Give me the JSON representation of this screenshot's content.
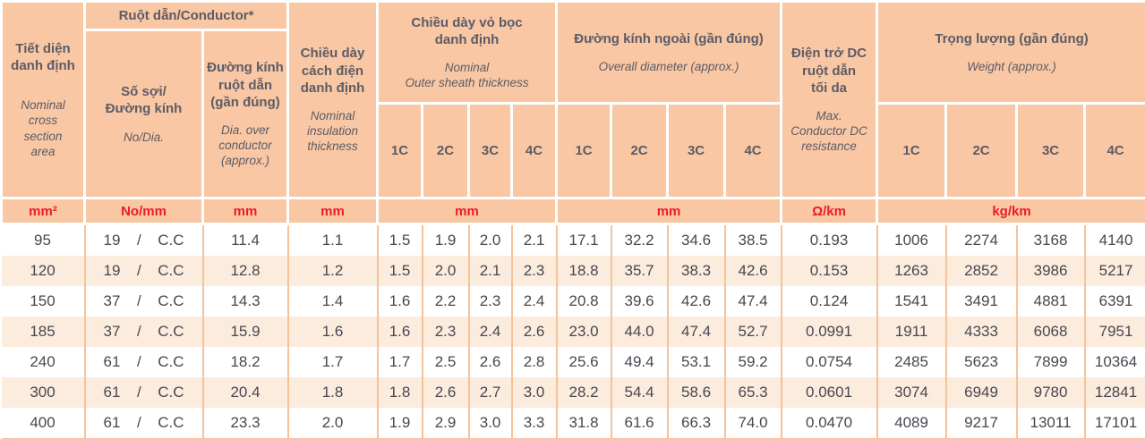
{
  "colors": {
    "header_bg": "#f9c7a4",
    "row_alt_bg": "#fcecdd",
    "grid_line": "#f4c39b",
    "unit_text": "#ec1c24",
    "header_text": "#5c5c66",
    "data_text": "#474750"
  },
  "table": {
    "cross_section": {
      "vi": "Tiết diện\ndanh định",
      "en": "Nominal\ncross\nsection\narea",
      "unit": "mm²"
    },
    "conductor_group": {
      "title": "Ruột dẫn/Conductor*",
      "no_dia": {
        "vi": "Số sợi/\nĐường kính",
        "en": "No/Dia.",
        "unit": "No/mm"
      },
      "dia_over": {
        "vi": "Đường kính\nruột dẫn\n(gần đúng)",
        "en": "Dia. over\nconductor\n(approx.)",
        "unit": "mm"
      }
    },
    "insulation": {
      "vi": "Chiều dày\ncách điện\ndanh định",
      "en": "Nominal\ninsulation\nthickness",
      "unit": "mm"
    },
    "sheath_group": {
      "vi": "Chiều dày vỏ bọc\ndanh định",
      "en": "Nominal\nOuter sheath thickness",
      "unit": "mm",
      "subcols": [
        "1C",
        "2C",
        "3C",
        "4C"
      ]
    },
    "diameter_group": {
      "vi": "Đường kính ngoài (gần đúng)",
      "en": "Overall diameter (approx.)",
      "unit": "mm",
      "subcols": [
        "1C",
        "2C",
        "3C",
        "4C"
      ]
    },
    "resistance": {
      "vi": "Điện trở DC\nruột dẫn\ntối da",
      "en": "Max.\nConductor DC\nresistance",
      "unit": "Ω/km"
    },
    "weight_group": {
      "vi": "Trọng lượng (gần đúng)",
      "en": "Weight (approx.)",
      "unit": "kg/km",
      "subcols": [
        "1C",
        "2C",
        "3C",
        "4C"
      ]
    },
    "rows": [
      {
        "size": "95",
        "strands": "19",
        "sep": "/",
        "material": "C.C",
        "dia": "11.4",
        "ins": "1.1",
        "sheath": [
          "1.5",
          "1.9",
          "2.0",
          "2.1"
        ],
        "od": [
          "17.1",
          "32.2",
          "34.6",
          "38.5"
        ],
        "res": "0.193",
        "weight": [
          "1006",
          "2274",
          "3168",
          "4140"
        ]
      },
      {
        "size": "120",
        "strands": "19",
        "sep": "/",
        "material": "C.C",
        "dia": "12.8",
        "ins": "1.2",
        "sheath": [
          "1.5",
          "2.0",
          "2.1",
          "2.3"
        ],
        "od": [
          "18.8",
          "35.7",
          "38.3",
          "42.6"
        ],
        "res": "0.153",
        "weight": [
          "1263",
          "2852",
          "3986",
          "5217"
        ]
      },
      {
        "size": "150",
        "strands": "37",
        "sep": "/",
        "material": "C.C",
        "dia": "14.3",
        "ins": "1.4",
        "sheath": [
          "1.6",
          "2.2",
          "2.3",
          "2.4"
        ],
        "od": [
          "20.8",
          "39.6",
          "42.6",
          "47.4"
        ],
        "res": "0.124",
        "weight": [
          "1541",
          "3491",
          "4881",
          "6391"
        ]
      },
      {
        "size": "185",
        "strands": "37",
        "sep": "/",
        "material": "C.C",
        "dia": "15.9",
        "ins": "1.6",
        "sheath": [
          "1.6",
          "2.3",
          "2.4",
          "2.6"
        ],
        "od": [
          "23.0",
          "44.0",
          "47.4",
          "52.7"
        ],
        "res": "0.0991",
        "weight": [
          "1911",
          "4333",
          "6068",
          "7951"
        ]
      },
      {
        "size": "240",
        "strands": "61",
        "sep": "/",
        "material": "C.C",
        "dia": "18.2",
        "ins": "1.7",
        "sheath": [
          "1.7",
          "2.5",
          "2.6",
          "2.8"
        ],
        "od": [
          "25.6",
          "49.4",
          "53.1",
          "59.2"
        ],
        "res": "0.0754",
        "weight": [
          "2485",
          "5623",
          "7899",
          "10364"
        ]
      },
      {
        "size": "300",
        "strands": "61",
        "sep": "/",
        "material": "C.C",
        "dia": "20.4",
        "ins": "1.8",
        "sheath": [
          "1.8",
          "2.6",
          "2.7",
          "3.0"
        ],
        "od": [
          "28.2",
          "54.4",
          "58.6",
          "65.3"
        ],
        "res": "0.0601",
        "weight": [
          "3074",
          "6949",
          "9780",
          "12841"
        ]
      },
      {
        "size": "400",
        "strands": "61",
        "sep": "/",
        "material": "C.C",
        "dia": "23.3",
        "ins": "2.0",
        "sheath": [
          "1.9",
          "2.9",
          "3.0",
          "3.3"
        ],
        "od": [
          "31.8",
          "61.6",
          "66.3",
          "74.0"
        ],
        "res": "0.0470",
        "weight": [
          "4089",
          "9217",
          "13011",
          "17101"
        ]
      }
    ]
  }
}
